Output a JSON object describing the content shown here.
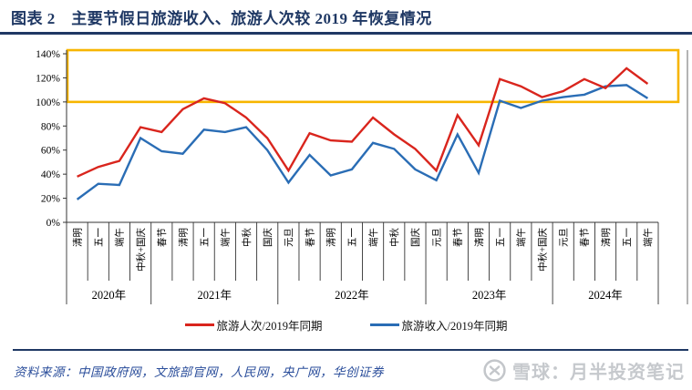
{
  "header": {
    "title": "图表 2　主要节假日旅游收入、旅游人次较 2019 年恢复情况"
  },
  "chart_data": {
    "type": "line",
    "title": "主要节假日旅游收入、旅游人次较 2019 年恢复情况",
    "ylim": [
      0,
      140
    ],
    "yticks": [
      0,
      20,
      40,
      60,
      80,
      100,
      120,
      140
    ],
    "ytick_suffix": "%",
    "grid": false,
    "legend_position": "bottom",
    "categories": [
      "清明",
      "五一",
      "端午",
      "中秋+国庆",
      "春节",
      "清明",
      "五一",
      "端午",
      "中秋",
      "国庆",
      "元旦",
      "春节",
      "清明",
      "五一",
      "端午",
      "中秋",
      "国庆",
      "元旦",
      "春节",
      "清明",
      "五一",
      "端午",
      "中秋+国庆",
      "元旦",
      "春节",
      "清明",
      "五一",
      "端午"
    ],
    "year_groups": [
      {
        "label": "2020年",
        "count": 4
      },
      {
        "label": "2021年",
        "count": 6
      },
      {
        "label": "2022年",
        "count": 7
      },
      {
        "label": "2023年",
        "count": 6
      },
      {
        "label": "2024年",
        "count": 5
      }
    ],
    "series": [
      {
        "name": "旅游人次/2019年同期",
        "color": "#D9251D",
        "values": [
          38,
          46,
          51,
          79,
          75,
          94,
          103,
          99,
          87,
          70,
          43,
          74,
          68,
          67,
          87,
          73,
          61,
          43,
          89,
          64,
          119,
          113,
          104,
          109,
          119,
          111.5,
          128,
          115
        ]
      },
      {
        "name": "旅游收入/2019年同期",
        "color": "#2A6DB5",
        "values": [
          19,
          32,
          31,
          70,
          59,
          57,
          77,
          75,
          79,
          60,
          33,
          56,
          39,
          44,
          66,
          61,
          44,
          35,
          73,
          41,
          101,
          95,
          101,
          104,
          106,
          113,
          114,
          103
        ]
      }
    ],
    "highlight_box": {
      "from_pct": 100,
      "to_pct": 143,
      "color": "#F7B500"
    }
  },
  "footer": {
    "source": "资料来源：中国政府网，文旅部官网，人民网，央广网，华创证券",
    "watermark": "雪球：月半投资笔记"
  },
  "colors": {
    "title": "#1F3864",
    "rule": "#1F3864",
    "axis": "#333333",
    "source_text": "#2B4E9B",
    "watermark_gray": "#C6C9CD"
  }
}
